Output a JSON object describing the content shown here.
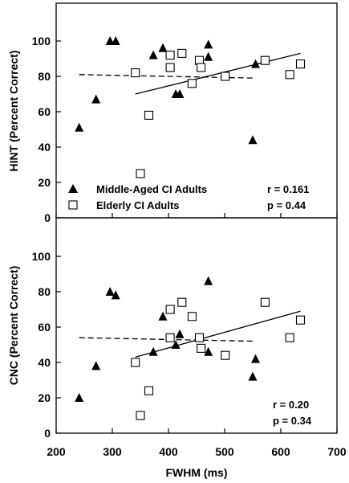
{
  "xlabel": "FWHM (ms)",
  "xlim": [
    200,
    700
  ],
  "x_ticks": [
    "200",
    "300",
    "400",
    "500",
    "600",
    "700"
  ],
  "chart_data": [
    {
      "type": "scatter",
      "ylabel": "HINT (Percent Correct)",
      "ylim": [
        0,
        110
      ],
      "y_ticks": [
        "0",
        "20",
        "40",
        "60",
        "80",
        "100"
      ],
      "legend": {
        "placement": "bottom-left",
        "entries": [
          {
            "label": "Middle-Aged CI Adults",
            "marker": "triangle"
          },
          {
            "label": "Elderly CI Adults",
            "marker": "square"
          }
        ]
      },
      "stats": {
        "r": "r = 0.161",
        "p": "p = 0.44"
      },
      "series": [
        {
          "name": "Middle-Aged CI Adults",
          "marker": "triangle",
          "points": [
            [
              241,
              51
            ],
            [
              271,
              67
            ],
            [
              296,
              100
            ],
            [
              306,
              100
            ],
            [
              373,
              92
            ],
            [
              390,
              96
            ],
            [
              413,
              70
            ],
            [
              420,
              70
            ],
            [
              471,
              98
            ],
            [
              471,
              91
            ],
            [
              550,
              44
            ],
            [
              555,
              87
            ]
          ],
          "fit": {
            "style": "dashed",
            "x": [
              241,
              555
            ],
            "y": [
              81,
              79
            ]
          }
        },
        {
          "name": "Elderly CI Adults",
          "marker": "square",
          "points": [
            [
              341,
              82
            ],
            [
              350,
              25
            ],
            [
              365,
              58
            ],
            [
              403,
              92
            ],
            [
              403,
              85
            ],
            [
              424,
              93
            ],
            [
              442,
              76
            ],
            [
              455,
              89
            ],
            [
              458,
              85
            ],
            [
              501,
              80
            ],
            [
              572,
              89
            ],
            [
              616,
              81
            ],
            [
              635,
              87
            ]
          ],
          "fit": {
            "style": "solid",
            "x": [
              341,
              635
            ],
            "y": [
              70,
              93
            ]
          }
        }
      ]
    },
    {
      "type": "scatter",
      "ylabel": "CNC (Percent Correct)",
      "ylim": [
        0,
        110
      ],
      "y_ticks": [
        "0",
        "20",
        "40",
        "60",
        "80",
        "100"
      ],
      "stats": {
        "r": "r = 0.20",
        "p": "p = 0.34"
      },
      "series": [
        {
          "name": "Middle-Aged CI Adults",
          "marker": "triangle",
          "points": [
            [
              241,
              20
            ],
            [
              271,
              38
            ],
            [
              296,
              80
            ],
            [
              306,
              78
            ],
            [
              373,
              46
            ],
            [
              390,
              66
            ],
            [
              413,
              50
            ],
            [
              420,
              56
            ],
            [
              471,
              86
            ],
            [
              471,
              46
            ],
            [
              550,
              32
            ],
            [
              555,
              42
            ]
          ],
          "fit": {
            "style": "dashed",
            "x": [
              241,
              555
            ],
            "y": [
              54,
              52
            ]
          }
        },
        {
          "name": "Elderly CI Adults",
          "marker": "square",
          "points": [
            [
              341,
              40
            ],
            [
              350,
              10
            ],
            [
              365,
              24
            ],
            [
              403,
              70
            ],
            [
              403,
              54
            ],
            [
              424,
              74
            ],
            [
              442,
              66
            ],
            [
              455,
              54
            ],
            [
              458,
              48
            ],
            [
              501,
              44
            ],
            [
              572,
              74
            ],
            [
              616,
              54
            ],
            [
              635,
              64
            ]
          ],
          "fit": {
            "style": "solid",
            "x": [
              341,
              635
            ],
            "y": [
              43,
              69
            ]
          }
        }
      ]
    }
  ]
}
